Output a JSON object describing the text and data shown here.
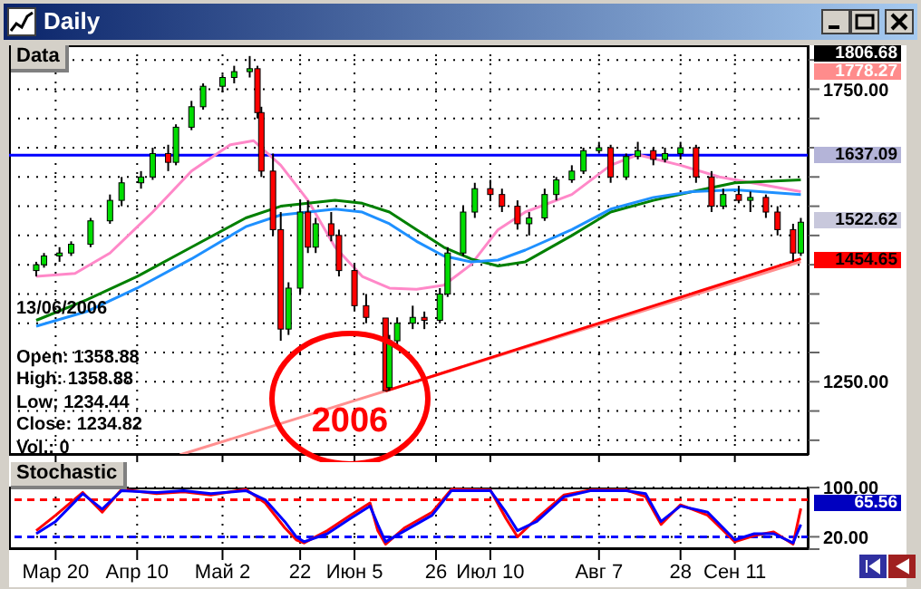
{
  "chart_data": [
    {
      "type": "candlestick",
      "title": "Daily",
      "subtitle": "Data",
      "x": [
        "2006-03-15",
        "2006-03-17",
        "2006-03-21",
        "2006-03-24",
        "2006-03-29",
        "2006-04-03",
        "2006-04-06",
        "2006-04-11",
        "2006-04-14",
        "2006-04-18",
        "2006-04-20",
        "2006-04-24",
        "2006-04-27",
        "2006-05-02",
        "2006-05-05",
        "2006-05-09",
        "2006-05-11",
        "2006-05-12",
        "2006-05-15",
        "2006-05-17",
        "2006-05-19",
        "2006-05-22",
        "2006-05-24",
        "2006-05-26",
        "2006-05-30",
        "2006-06-01",
        "2006-06-05",
        "2006-06-08",
        "2006-06-13",
        "2006-06-14",
        "2006-06-16",
        "2006-06-20",
        "2006-06-23",
        "2006-06-27",
        "2006-06-29",
        "2006-07-03",
        "2006-07-06",
        "2006-07-10",
        "2006-07-13",
        "2006-07-17",
        "2006-07-20",
        "2006-07-24",
        "2006-07-27",
        "2006-07-31",
        "2006-08-03",
        "2006-08-07",
        "2006-08-10",
        "2006-08-14",
        "2006-08-17",
        "2006-08-21",
        "2006-08-24",
        "2006-08-28",
        "2006-09-01",
        "2006-09-05",
        "2006-09-08",
        "2006-09-12",
        "2006-09-15",
        "2006-09-19",
        "2006-09-22",
        "2006-09-26",
        "2006-09-28"
      ],
      "ohlc": [
        [
          1440,
          1455,
          1430,
          1450
        ],
        [
          1450,
          1470,
          1445,
          1465
        ],
        [
          1465,
          1480,
          1455,
          1470
        ],
        [
          1470,
          1490,
          1465,
          1485
        ],
        [
          1485,
          1530,
          1480,
          1525
        ],
        [
          1525,
          1570,
          1520,
          1560
        ],
        [
          1560,
          1600,
          1550,
          1590
        ],
        [
          1590,
          1610,
          1580,
          1600
        ],
        [
          1600,
          1650,
          1595,
          1640
        ],
        [
          1640,
          1655,
          1610,
          1625
        ],
        [
          1625,
          1690,
          1620,
          1685
        ],
        [
          1685,
          1730,
          1680,
          1720
        ],
        [
          1720,
          1760,
          1715,
          1755
        ],
        [
          1755,
          1775,
          1745,
          1770
        ],
        [
          1770,
          1790,
          1760,
          1780
        ],
        [
          1780,
          1806.68,
          1770,
          1785
        ],
        [
          1785,
          1790,
          1700,
          1710
        ],
        [
          1710,
          1720,
          1600,
          1610
        ],
        [
          1610,
          1640,
          1500,
          1510
        ],
        [
          1510,
          1540,
          1320,
          1340
        ],
        [
          1340,
          1420,
          1330,
          1410
        ],
        [
          1410,
          1560,
          1400,
          1540
        ],
        [
          1540,
          1560,
          1470,
          1480
        ],
        [
          1480,
          1530,
          1470,
          1520
        ],
        [
          1520,
          1540,
          1490,
          1500
        ],
        [
          1500,
          1510,
          1430,
          1440
        ],
        [
          1440,
          1450,
          1370,
          1380
        ],
        [
          1380,
          1400,
          1350,
          1360
        ],
        [
          1358.88,
          1358.88,
          1234.44,
          1234.82
        ],
        [
          1240,
          1330,
          1235,
          1320
        ],
        [
          1320,
          1360,
          1310,
          1350
        ],
        [
          1350,
          1380,
          1340,
          1360
        ],
        [
          1360,
          1370,
          1340,
          1355
        ],
        [
          1355,
          1410,
          1350,
          1400
        ],
        [
          1400,
          1480,
          1395,
          1470
        ],
        [
          1470,
          1550,
          1465,
          1540
        ],
        [
          1540,
          1590,
          1530,
          1580
        ],
        [
          1580,
          1595,
          1560,
          1570
        ],
        [
          1570,
          1580,
          1540,
          1550
        ],
        [
          1550,
          1560,
          1510,
          1520
        ],
        [
          1520,
          1540,
          1500,
          1530
        ],
        [
          1530,
          1580,
          1525,
          1570
        ],
        [
          1570,
          1600,
          1560,
          1595
        ],
        [
          1595,
          1620,
          1590,
          1610
        ],
        [
          1610,
          1650,
          1605,
          1645
        ],
        [
          1645,
          1660,
          1640,
          1650
        ],
        [
          1650,
          1655,
          1590,
          1600
        ],
        [
          1600,
          1640,
          1595,
          1635
        ],
        [
          1635,
          1660,
          1630,
          1645
        ],
        [
          1645,
          1650,
          1620,
          1630
        ],
        [
          1630,
          1650,
          1625,
          1640
        ],
        [
          1640,
          1660,
          1630,
          1650
        ],
        [
          1650,
          1655,
          1590,
          1600
        ],
        [
          1600,
          1610,
          1540,
          1550
        ],
        [
          1550,
          1580,
          1545,
          1570
        ],
        [
          1570,
          1585,
          1555,
          1560
        ],
        [
          1560,
          1575,
          1540,
          1565
        ],
        [
          1565,
          1570,
          1530,
          1540
        ],
        [
          1540,
          1550,
          1500,
          1510
        ],
        [
          1510,
          1520,
          1456,
          1470
        ],
        [
          1470,
          1530,
          1465,
          1522.62
        ]
      ],
      "series": [
        {
          "type": "line",
          "color": "#ff88c8",
          "x": [
            "2006-03-15",
            "2006-03-25",
            "2006-04-03",
            "2006-04-14",
            "2006-04-24",
            "2006-05-04",
            "2006-05-10",
            "2006-05-17",
            "2006-05-24",
            "2006-05-31",
            "2006-06-07",
            "2006-06-14",
            "2006-06-21",
            "2006-06-28",
            "2006-07-05",
            "2006-07-12",
            "2006-07-19",
            "2006-07-31",
            "2006-08-10",
            "2006-08-17",
            "2006-08-28",
            "2006-09-07",
            "2006-09-28"
          ],
          "values": [
            1430,
            1435,
            1470,
            1540,
            1610,
            1655,
            1662,
            1620,
            1560,
            1480,
            1430,
            1410,
            1408,
            1415,
            1450,
            1510,
            1540,
            1570,
            1620,
            1638,
            1620,
            1600,
            1575
          ]
        },
        {
          "type": "line",
          "color": "#008000",
          "x": [
            "2006-03-15",
            "2006-03-28",
            "2006-04-10",
            "2006-04-24",
            "2006-05-08",
            "2006-05-17",
            "2006-05-31",
            "2006-06-07",
            "2006-06-14",
            "2006-06-21",
            "2006-06-28",
            "2006-07-05",
            "2006-07-12",
            "2006-07-19",
            "2006-07-31",
            "2006-08-10",
            "2006-08-21",
            "2006-08-31",
            "2006-09-11",
            "2006-09-28"
          ],
          "values": [
            1355,
            1390,
            1430,
            1480,
            1530,
            1550,
            1560,
            1555,
            1540,
            1510,
            1480,
            1460,
            1448,
            1455,
            1500,
            1540,
            1560,
            1575,
            1590,
            1595
          ]
        },
        {
          "type": "line",
          "color": "#1e90ff",
          "x": [
            "2006-03-15",
            "2006-03-28",
            "2006-04-10",
            "2006-04-24",
            "2006-05-08",
            "2006-05-17",
            "2006-05-31",
            "2006-06-07",
            "2006-06-14",
            "2006-06-21",
            "2006-06-28",
            "2006-07-05",
            "2006-07-12",
            "2006-07-19",
            "2006-07-31",
            "2006-08-10",
            "2006-08-21",
            "2006-08-31",
            "2006-09-11",
            "2006-09-28"
          ],
          "values": [
            1345,
            1370,
            1410,
            1460,
            1515,
            1535,
            1545,
            1540,
            1520,
            1490,
            1465,
            1455,
            1458,
            1475,
            1510,
            1545,
            1565,
            1575,
            1578,
            1570
          ]
        },
        {
          "type": "line",
          "color": "#ff9090",
          "x": [
            "2006-04-21",
            "2006-09-28"
          ],
          "values": [
            1125,
            1455
          ]
        },
        {
          "type": "line",
          "color": "#ff0000",
          "x": [
            "2006-06-13",
            "2006-09-28"
          ],
          "values": [
            1234,
            1460
          ]
        }
      ],
      "xlim": [
        "2006-03-08",
        "2006-09-30"
      ],
      "xticks": [
        {
          "value": "2006-03-20",
          "label": null
        },
        {
          "value": "2006-04-10",
          "label": null
        },
        {
          "value": "2006-05-02",
          "label": null
        },
        {
          "value": "2006-05-22",
          "label": null
        },
        {
          "value": "2006-06-05",
          "label": null
        },
        {
          "value": "2006-06-26",
          "label": null
        },
        {
          "value": "2006-07-10",
          "label": null
        },
        {
          "value": "2006-08-07",
          "label": null
        },
        {
          "value": "2006-08-28",
          "label": null
        },
        {
          "value": "2006-09-11",
          "label": null
        }
      ],
      "ylim": [
        1125,
        1825
      ],
      "yticks": [
        {
          "value": 1150,
          "label": null
        },
        {
          "value": 1200,
          "label": null
        },
        {
          "value": 1250,
          "label": "1250.00"
        },
        {
          "value": 1300,
          "label": null
        },
        {
          "value": 1350,
          "label": null
        },
        {
          "value": 1400,
          "label": null
        },
        {
          "value": 1450,
          "label": null
        },
        {
          "value": 1500,
          "label": null
        },
        {
          "value": 1550,
          "label": null
        },
        {
          "value": 1600,
          "label": null
        },
        {
          "value": 1650,
          "label": null
        },
        {
          "value": 1700,
          "label": null
        },
        {
          "value": 1750,
          "label": "1750.00"
        },
        {
          "value": 1800,
          "label": null
        }
      ],
      "grid": true,
      "tick_labels": "y",
      "ref_lines": [
        {
          "axis": "y",
          "value": 1637.09,
          "label": "1637.09",
          "color": "#0000ff"
        }
      ],
      "annotations": [
        "1806.68",
        "1778.27",
        "1522.62",
        "1454.65",
        "13/06/2006",
        "Open: 1358.88",
        "High: 1358.88",
        "Low: 1234.44",
        "Close: 1234.82",
        "Vol.: 0",
        "2006"
      ]
    },
    {
      "type": "line",
      "title": "Stochastic",
      "series": [
        {
          "color": "#ff0000",
          "x": [
            "2006-03-15",
            "2006-03-20",
            "2006-03-27",
            "2006-04-01",
            "2006-04-06",
            "2006-04-15",
            "2006-04-22",
            "2006-04-29",
            "2006-05-08",
            "2006-05-13",
            "2006-05-18",
            "2006-05-21",
            "2006-05-23",
            "2006-05-29",
            "2006-06-04",
            "2006-06-09",
            "2006-06-11",
            "2006-06-13",
            "2006-06-18",
            "2006-06-25",
            "2006-06-30",
            "2006-07-10",
            "2006-07-14",
            "2006-07-17",
            "2006-07-22",
            "2006-07-29",
            "2006-08-05",
            "2006-08-14",
            "2006-08-19",
            "2006-08-23",
            "2006-08-28",
            "2006-09-04",
            "2006-09-11",
            "2006-09-16",
            "2006-09-21",
            "2006-09-26",
            "2006-09-28"
          ],
          "values": [
            30,
            55,
            92,
            60,
            97,
            90,
            93,
            88,
            97,
            75,
            35,
            15,
            10,
            30,
            55,
            75,
            30,
            8,
            35,
            60,
            97,
            96,
            50,
            20,
            50,
            88,
            96,
            96,
            85,
            40,
            72,
            55,
            12,
            22,
            28,
            8,
            66
          ]
        },
        {
          "color": "#0000ff",
          "x": [
            "2006-03-15",
            "2006-03-20",
            "2006-03-27",
            "2006-04-01",
            "2006-04-06",
            "2006-04-15",
            "2006-04-22",
            "2006-04-29",
            "2006-05-08",
            "2006-05-13",
            "2006-05-18",
            "2006-05-21",
            "2006-05-23",
            "2006-05-29",
            "2006-06-04",
            "2006-06-09",
            "2006-06-11",
            "2006-06-13",
            "2006-06-18",
            "2006-06-25",
            "2006-06-30",
            "2006-07-10",
            "2006-07-14",
            "2006-07-17",
            "2006-07-22",
            "2006-07-29",
            "2006-08-05",
            "2006-08-14",
            "2006-08-19",
            "2006-08-23",
            "2006-08-28",
            "2006-09-04",
            "2006-09-11",
            "2006-09-16",
            "2006-09-21",
            "2006-09-26",
            "2006-09-28"
          ],
          "values": [
            25,
            45,
            90,
            65,
            95,
            92,
            95,
            90,
            95,
            80,
            45,
            20,
            12,
            25,
            50,
            70,
            40,
            12,
            30,
            55,
            95,
            95,
            60,
            30,
            45,
            85,
            95,
            95,
            90,
            45,
            70,
            60,
            15,
            25,
            25,
            10,
            40
          ]
        }
      ],
      "xlim": [
        "2006-03-08",
        "2006-09-30"
      ],
      "xticks": [
        {
          "value": "2006-03-20",
          "label": "Мар 20"
        },
        {
          "value": "2006-04-10",
          "label": "Апр 10"
        },
        {
          "value": "2006-05-02",
          "label": "Май 2"
        },
        {
          "value": "2006-05-22",
          "label": "22"
        },
        {
          "value": "2006-06-05",
          "label": "Июн 5"
        },
        {
          "value": "2006-06-26",
          "label": "26"
        },
        {
          "value": "2006-07-10",
          "label": "Июл 10"
        },
        {
          "value": "2006-08-07",
          "label": "Авг 7"
        },
        {
          "value": "2006-08-28",
          "label": "28"
        },
        {
          "value": "2006-09-11",
          "label": "Сен 11"
        }
      ],
      "ylim": [
        0,
        100
      ],
      "yticks": [
        {
          "value": 0,
          "label": null
        },
        {
          "value": 20,
          "label": "20.00"
        },
        {
          "value": 100,
          "label": "100.00"
        }
      ],
      "grid": true,
      "ref_lines": [
        {
          "axis": "y",
          "value": 80,
          "color": "#ff0000",
          "line_style": "dashed"
        },
        {
          "axis": "y",
          "value": 20,
          "color": "#0000ff",
          "line_style": "dashed"
        }
      ],
      "annotations": [
        "65.56"
      ]
    }
  ]
}
